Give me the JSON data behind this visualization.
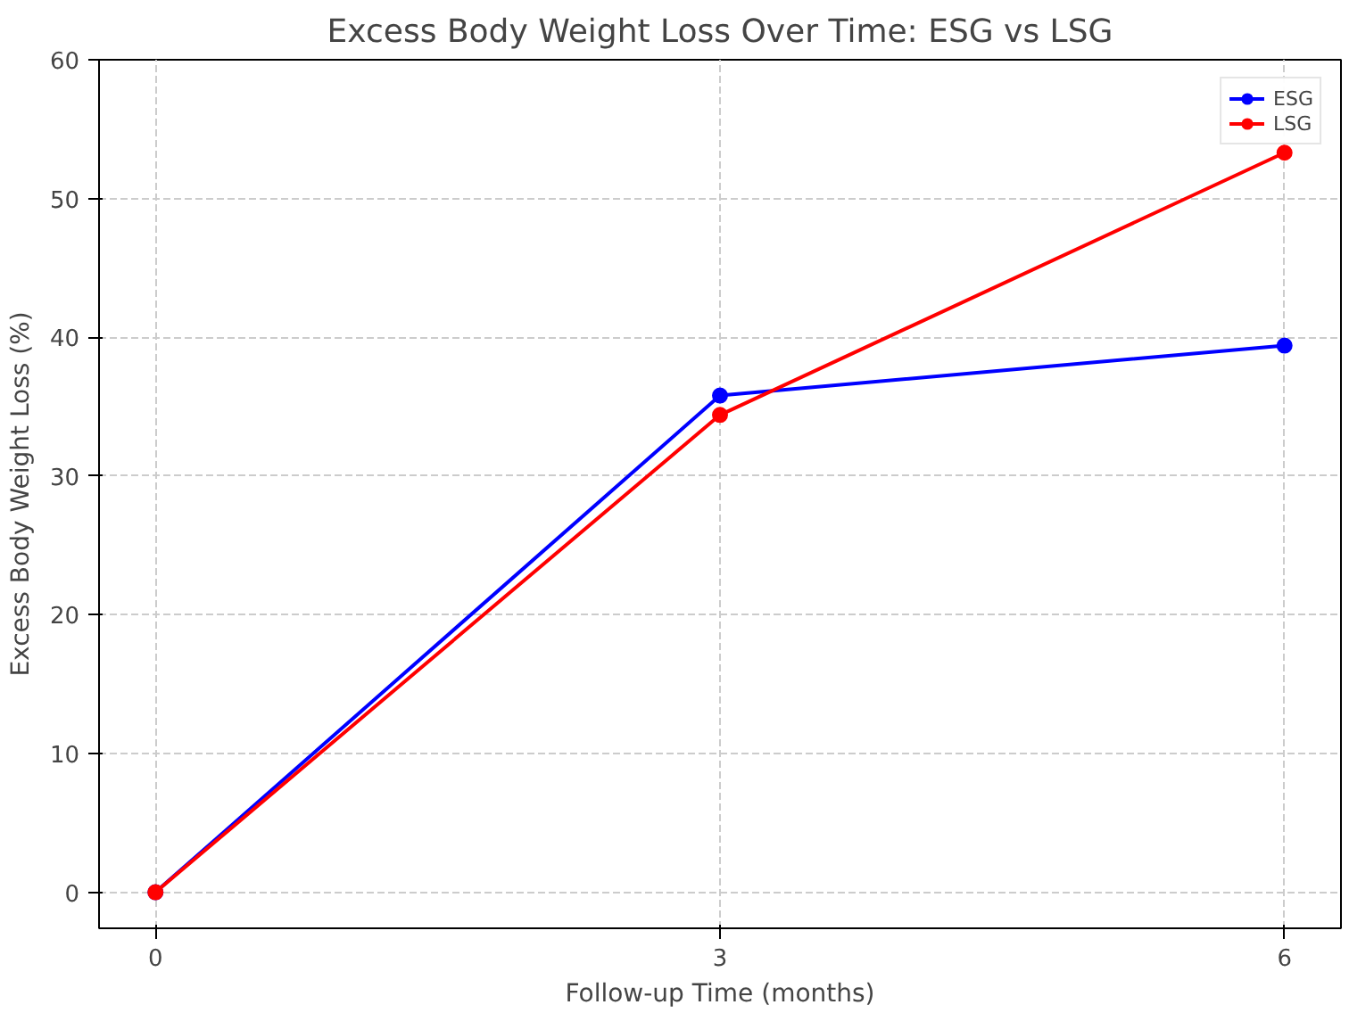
{
  "chart_data": {
    "type": "line",
    "title": "Excess Body Weight Loss Over Time: ESG vs LSG",
    "xlabel": "Follow-up Time (months)",
    "ylabel": "Excess Body Weight Loss (%)",
    "x": [
      0,
      3,
      6
    ],
    "series": [
      {
        "name": "ESG",
        "color": "#0000ff",
        "values": [
          0,
          35.8,
          39.4
        ]
      },
      {
        "name": "LSG",
        "color": "#ff0000",
        "values": [
          0,
          34.4,
          53.3
        ]
      }
    ],
    "xlim": [
      -0.3,
      6.3
    ],
    "ylim": [
      -2.6,
      60
    ],
    "xticks": [
      0,
      3,
      6
    ],
    "yticks": [
      0,
      10,
      20,
      30,
      40,
      50,
      60
    ],
    "grid": true,
    "legend": "top right",
    "marker": "circle",
    "line_style": "solid"
  }
}
